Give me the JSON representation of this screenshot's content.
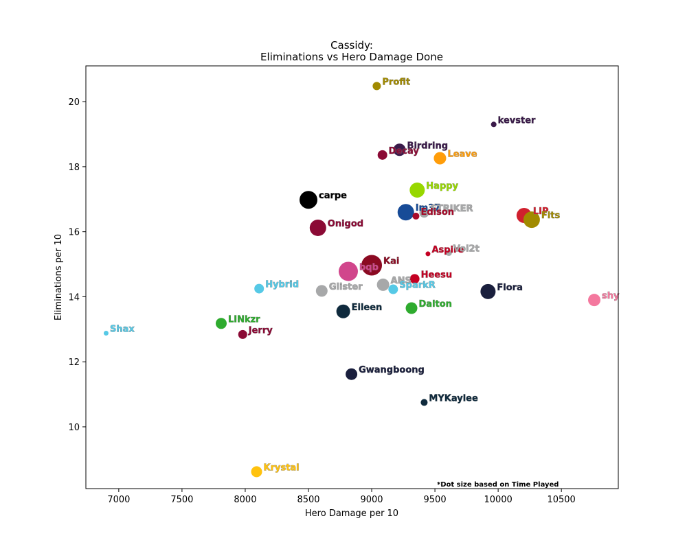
{
  "chart_data": {
    "type": "scatter",
    "title": "Cassidy:",
    "subtitle": "Eliminations vs Hero Damage Done",
    "xlabel": "Hero Damage per 10",
    "ylabel": "Eliminations per 10",
    "xlim": [
      6740,
      10950
    ],
    "ylim": [
      8.1,
      21.1
    ],
    "xticks": [
      7000,
      7500,
      8000,
      8500,
      9000,
      9500,
      10000,
      10500
    ],
    "yticks": [
      10,
      12,
      14,
      16,
      18,
      20
    ],
    "note": "*Dot size based on Time Played",
    "grid": false,
    "points": [
      {
        "name": "Profit",
        "x": 9040,
        "y": 20.48,
        "size": 6,
        "color": "#a18a00"
      },
      {
        "name": "kevster",
        "x": 9965,
        "y": 19.3,
        "size": 4,
        "color": "#3a1a4a"
      },
      {
        "name": "Birdring",
        "x": 9220,
        "y": 18.52,
        "size": 9,
        "color": "#3a1a4a"
      },
      {
        "name": "Decay",
        "x": 9085,
        "y": 18.36,
        "size": 7,
        "color": "#8b0a35"
      },
      {
        "name": "Leave",
        "x": 9540,
        "y": 18.26,
        "size": 9,
        "color": "#ff9d0a"
      },
      {
        "name": "Happy",
        "x": 9360,
        "y": 17.28,
        "size": 11,
        "color": "#97d700"
      },
      {
        "name": "carpe",
        "x": 8500,
        "y": 16.98,
        "size": 13,
        "color": "#000000"
      },
      {
        "name": "Im37",
        "x": 9270,
        "y": 16.6,
        "size": 12,
        "color": "#174b97"
      },
      {
        "name": "STRIKER",
        "x": 9415,
        "y": 16.58,
        "size": 7,
        "color": "#a7a8a9"
      },
      {
        "name": "Edison",
        "x": 9350,
        "y": 16.48,
        "size": 5,
        "color": "#a70a2a"
      },
      {
        "name": "LIP",
        "x": 10205,
        "y": 16.5,
        "size": 11,
        "color": "#d0202e"
      },
      {
        "name": "Fits",
        "x": 10265,
        "y": 16.37,
        "size": 12,
        "color": "#a18a00"
      },
      {
        "name": "Onigod",
        "x": 8575,
        "y": 16.12,
        "size": 12,
        "color": "#8b0a35"
      },
      {
        "name": "Aspire",
        "x": 9445,
        "y": 15.32,
        "size": 3.5,
        "color": "#c40022"
      },
      {
        "name": "Vol2t",
        "x": 9610,
        "y": 15.35,
        "size": 4.5,
        "color": "#a7a8a9"
      },
      {
        "name": "Kai",
        "x": 9000,
        "y": 14.97,
        "size": 15,
        "color": "#8b0a22"
      },
      {
        "name": "bqb",
        "x": 8815,
        "y": 14.78,
        "size": 14,
        "color": "#d1468c"
      },
      {
        "name": "Heesu",
        "x": 9340,
        "y": 14.55,
        "size": 7,
        "color": "#c40022"
      },
      {
        "name": "ANS",
        "x": 9090,
        "y": 14.37,
        "size": 9,
        "color": "#a7a8a9"
      },
      {
        "name": "SparkR",
        "x": 9170,
        "y": 14.23,
        "size": 7,
        "color": "#56c9e6"
      },
      {
        "name": "Hybrid",
        "x": 8110,
        "y": 14.25,
        "size": 7,
        "color": "#56c9e6"
      },
      {
        "name": "Glister",
        "x": 8605,
        "y": 14.18,
        "size": 8.5,
        "color": "#a7a8a9"
      },
      {
        "name": "Flora",
        "x": 9920,
        "y": 14.16,
        "size": 11,
        "color": "#1a1f3d"
      },
      {
        "name": "shy",
        "x": 10760,
        "y": 13.9,
        "size": 9,
        "color": "#f4789e"
      },
      {
        "name": "Dalton",
        "x": 9315,
        "y": 13.65,
        "size": 8.5,
        "color": "#2eab2e"
      },
      {
        "name": "Eileen",
        "x": 8775,
        "y": 13.55,
        "size": 10,
        "color": "#0f2a3d"
      },
      {
        "name": "LINkzr",
        "x": 7810,
        "y": 13.18,
        "size": 8,
        "color": "#2eab2e"
      },
      {
        "name": "Shax",
        "x": 6900,
        "y": 12.88,
        "size": 3.5,
        "color": "#56c9e6"
      },
      {
        "name": "Jerry",
        "x": 7980,
        "y": 12.84,
        "size": 6.5,
        "color": "#8b0a35"
      },
      {
        "name": "Gwangboong",
        "x": 8840,
        "y": 11.62,
        "size": 8.5,
        "color": "#1a1f3d"
      },
      {
        "name": "MYKaylee",
        "x": 9415,
        "y": 10.75,
        "size": 5,
        "color": "#0f2a3d"
      },
      {
        "name": "Krystal",
        "x": 8090,
        "y": 8.62,
        "size": 8,
        "color": "#ffc20e"
      }
    ]
  }
}
